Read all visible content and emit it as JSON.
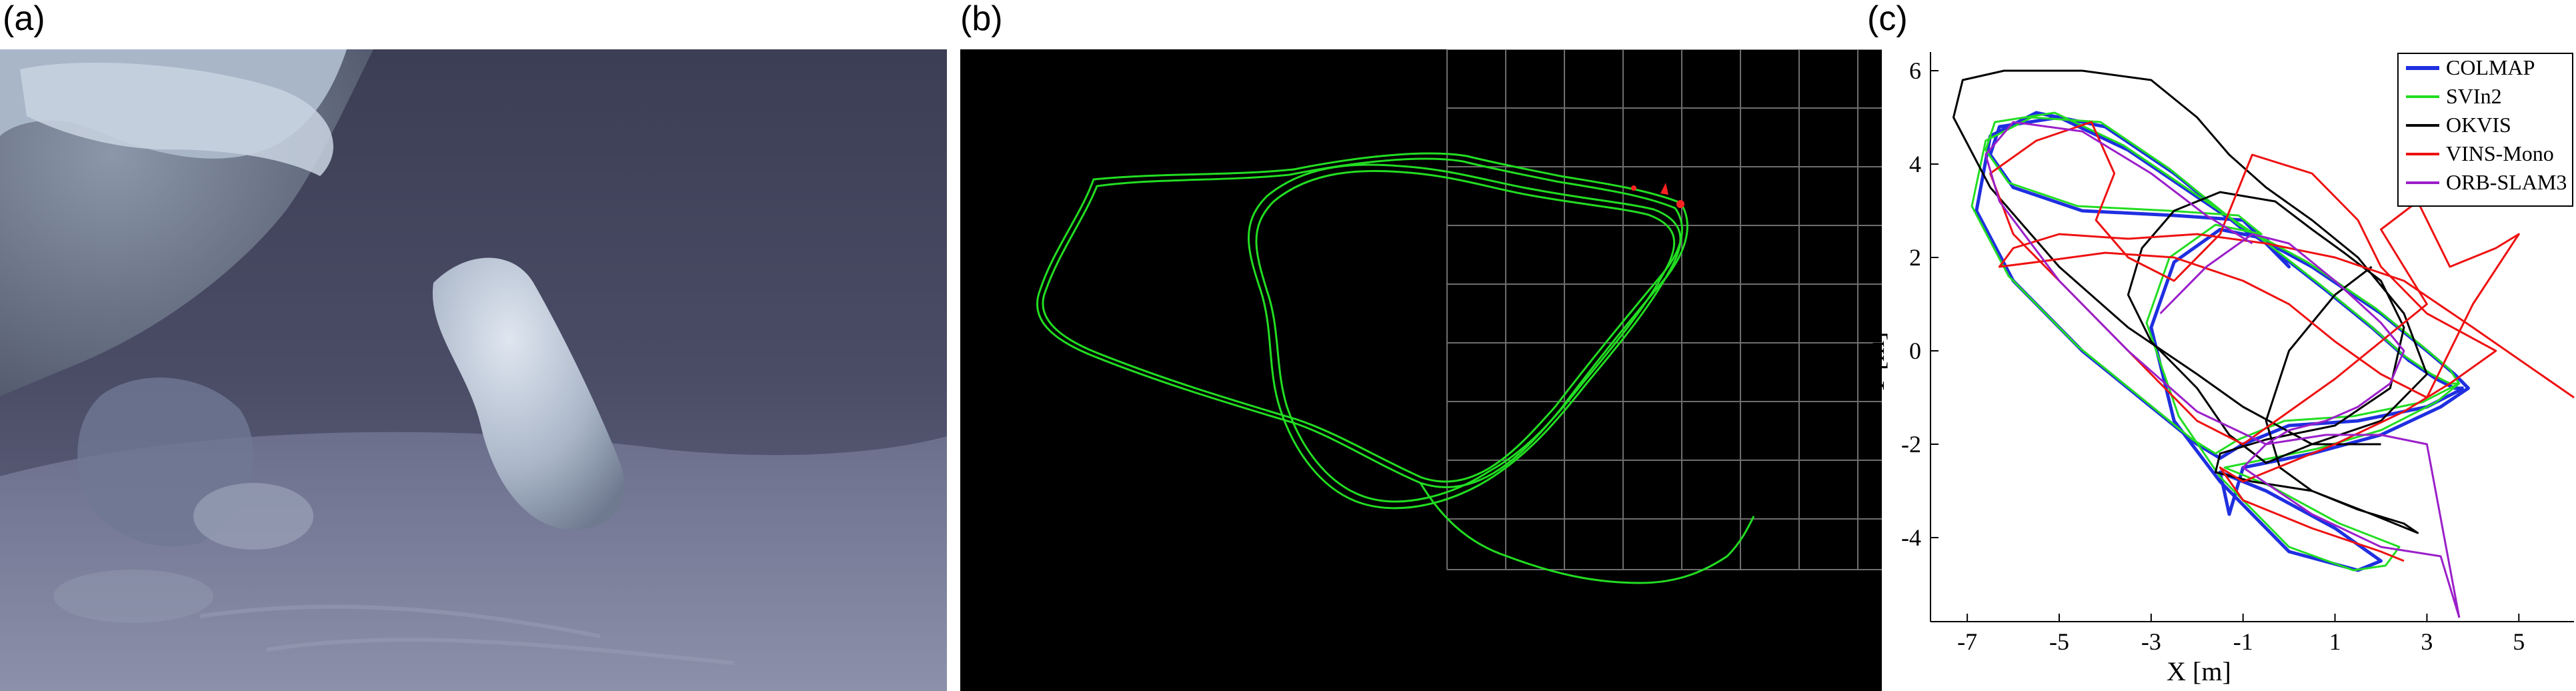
{
  "figure": {
    "panels": [
      {
        "id": "a",
        "label": "(a)"
      },
      {
        "id": "b",
        "label": "(b)"
      },
      {
        "id": "c",
        "label": "(c)"
      }
    ]
  },
  "colors": {
    "photo_bg": "#55586f",
    "trajectory_green": "#22dd22",
    "marker_red": "#ff2222",
    "grid": "#7a7a7a"
  },
  "chart_data": {
    "type": "line",
    "xlabel": "X [m]",
    "ylabel": "Y [m]",
    "xlim": [
      -7.8,
      6.2
    ],
    "ylim": [
      -5.8,
      6.4
    ],
    "xticks": [
      -7,
      -5,
      -3,
      -1,
      1,
      3,
      5
    ],
    "yticks": [
      -4,
      -2,
      0,
      2,
      4,
      6
    ],
    "grid": false,
    "legend_position": "top-right",
    "series": [
      {
        "name": "COLMAP",
        "color": "#1f2fe0",
        "x": [
          3.8,
          3.0,
          1.5,
          0.0,
          -1.0,
          -1.5,
          -2.0,
          -3.0,
          -4.5,
          -6.0,
          -6.8,
          -6.5,
          -5.5,
          -4.0,
          -2.5,
          -1.0,
          0.5,
          2.0,
          3.0,
          3.6,
          3.9,
          3.3,
          2.0,
          0.5,
          -1.0,
          -1.3,
          -1.5,
          -0.5,
          1.0,
          2.0,
          1.5,
          0.0,
          -1.5,
          -2.5,
          -3.0,
          -2.5,
          -1.5,
          -0.5,
          0.0,
          -1.0,
          -2.5,
          -4.5,
          -6.0,
          -6.5,
          -6.3,
          -5.0,
          -3.5,
          -2.0,
          -0.5,
          0.8,
          1.8,
          2.6,
          3.2,
          3.6,
          3.8
        ],
        "y": [
          -0.8,
          -1.2,
          -1.5,
          -1.6,
          -2.0,
          -2.3,
          -2.0,
          -1.2,
          0.0,
          1.5,
          3.0,
          4.6,
          5.1,
          4.8,
          3.8,
          2.6,
          1.8,
          0.8,
          0.0,
          -0.5,
          -0.8,
          -1.2,
          -1.8,
          -2.2,
          -2.5,
          -3.5,
          -2.6,
          -3.0,
          -3.8,
          -4.5,
          -4.7,
          -4.3,
          -2.8,
          -1.5,
          0.5,
          1.9,
          2.6,
          2.4,
          1.8,
          2.8,
          2.9,
          3.0,
          3.5,
          4.2,
          4.8,
          5.0,
          4.3,
          3.3,
          2.3,
          1.3,
          0.5,
          -0.2,
          -0.6,
          -0.8,
          -0.8
        ]
      },
      {
        "name": "SVIn2",
        "color": "#22dd22",
        "x": [
          3.7,
          2.9,
          1.4,
          -0.1,
          -1.1,
          -1.6,
          -2.1,
          -3.1,
          -4.6,
          -6.1,
          -6.9,
          -6.6,
          -5.6,
          -4.1,
          -2.6,
          -1.1,
          0.4,
          1.9,
          2.9,
          3.5,
          3.7,
          3.2,
          2.0,
          0.6,
          -0.9,
          -1.4,
          -0.4,
          1.1,
          2.4,
          2.1,
          1.4,
          0.0,
          -1.5,
          -2.4,
          -3.1,
          -2.6,
          -1.6,
          -0.6,
          -1.1,
          -2.6,
          -4.6,
          -6.1,
          -6.6,
          -6.4,
          -5.1,
          -3.6,
          -2.1,
          -0.6,
          0.7,
          1.7,
          2.5,
          3.1,
          3.5,
          3.7
        ],
        "y": [
          -0.7,
          -1.1,
          -1.4,
          -1.5,
          -1.9,
          -2.2,
          -1.9,
          -1.1,
          0.1,
          1.6,
          3.1,
          4.5,
          5.0,
          4.9,
          3.9,
          2.7,
          1.9,
          0.9,
          0.1,
          -0.4,
          -0.7,
          -1.1,
          -1.7,
          -2.1,
          -2.4,
          -2.5,
          -2.9,
          -3.7,
          -4.2,
          -4.6,
          -4.7,
          -4.2,
          -2.7,
          -1.4,
          0.6,
          2.0,
          2.7,
          2.5,
          2.9,
          3.0,
          3.1,
          3.6,
          4.3,
          4.9,
          5.1,
          4.4,
          3.4,
          2.4,
          1.4,
          0.6,
          -0.1,
          -0.5,
          -0.7,
          -0.7
        ]
      },
      {
        "name": "OKVIS",
        "color": "#000000",
        "x": [
          2.0,
          0.5,
          -1.0,
          -2.0,
          -3.5,
          -5.0,
          -6.5,
          -7.3,
          -7.1,
          -6.2,
          -4.5,
          -3.0,
          -2.0,
          -1.3,
          -0.5,
          0.5,
          1.5,
          2.5,
          3.0,
          2.0,
          0.5,
          -0.5,
          -1.3,
          -2.0,
          -3.0,
          -3.5,
          -3.2,
          -2.5,
          -1.5,
          -0.3,
          0.5,
          1.2,
          2.0,
          2.5,
          2.2,
          1.0,
          -0.5,
          -1.5,
          -1.6,
          -0.8,
          0.5,
          1.8,
          2.8,
          2.5,
          1.5,
          0.5,
          -0.2,
          -0.5,
          0.0,
          1.0,
          1.8
        ],
        "y": [
          -2.0,
          -2.0,
          -1.2,
          -0.5,
          0.5,
          1.8,
          3.5,
          5.0,
          5.8,
          6.0,
          6.0,
          5.8,
          5.0,
          4.2,
          3.5,
          2.8,
          2.0,
          0.8,
          -0.5,
          -1.5,
          -2.0,
          -2.4,
          -1.8,
          -0.8,
          0.2,
          1.2,
          2.2,
          3.0,
          3.4,
          3.2,
          2.6,
          2.1,
          1.5,
          0.5,
          -0.8,
          -1.6,
          -1.9,
          -2.2,
          -2.6,
          -2.8,
          -3.0,
          -3.5,
          -3.9,
          -3.7,
          -3.4,
          -3.0,
          -2.5,
          -1.5,
          0.0,
          1.2,
          1.8
        ]
      },
      {
        "name": "VINS-Mono",
        "color": "#ee1111",
        "x": [
          6.2,
          4.0,
          2.5,
          1.0,
          -0.5,
          -2.0,
          -3.5,
          -5.0,
          -6.0,
          -6.3,
          -5.5,
          -4.0,
          -2.5,
          -1.0,
          0.0,
          1.0,
          2.0,
          3.0,
          4.0,
          5.0,
          4.5,
          3.5,
          2.8,
          2.0,
          3.0,
          2.0,
          1.0,
          0.0,
          -1.0,
          -2.0,
          -3.0,
          -4.0,
          -5.0,
          -6.0,
          -6.5,
          -5.5,
          -4.3,
          -3.8,
          -4.2,
          -3.5,
          -2.5,
          -1.5,
          -0.8,
          0.5,
          1.5,
          2.0,
          3.0,
          4.5,
          3.5,
          2.5,
          1.0,
          0.0,
          -1.0,
          -1.5,
          -1.0,
          0.5,
          2.0,
          2.5
        ],
        "y": [
          -1.0,
          0.5,
          1.5,
          2.0,
          2.3,
          2.5,
          2.4,
          2.5,
          2.2,
          1.8,
          1.9,
          2.1,
          2.0,
          1.5,
          1.0,
          0.2,
          -0.5,
          -1.0,
          1.0,
          2.5,
          2.2,
          1.8,
          3.2,
          2.6,
          1.0,
          0.2,
          -0.6,
          -1.3,
          -2.0,
          -1.5,
          -0.5,
          0.5,
          1.5,
          2.5,
          3.8,
          4.5,
          4.9,
          3.8,
          2.8,
          2.0,
          1.5,
          2.5,
          4.2,
          3.8,
          2.8,
          1.8,
          0.8,
          0.0,
          -0.7,
          -1.3,
          -2.0,
          -2.4,
          -2.8,
          -2.5,
          -3.2,
          -3.8,
          -4.3,
          -4.5
        ]
      },
      {
        "name": "ORB-SLAM3",
        "color": "#9b1fc9",
        "x": [
          -2.8,
          -1.8,
          -0.8,
          0.0,
          1.0,
          2.0,
          2.5,
          2.2,
          1.5,
          0.8,
          0.0,
          -0.5,
          -1.0,
          0.5,
          2.0,
          3.3,
          3.7,
          3.0,
          2.0,
          0.8,
          -0.5,
          -2.0,
          -3.5,
          -5.0,
          -6.3,
          -6.6,
          -6.0,
          -4.5,
          -3.0,
          -1.8,
          -0.8
        ],
        "y": [
          0.8,
          1.8,
          2.5,
          2.3,
          1.5,
          0.6,
          0.0,
          -0.7,
          -1.2,
          -1.5,
          -1.7,
          -2.0,
          -2.5,
          -3.5,
          -4.2,
          -4.4,
          -5.7,
          -2.0,
          -1.8,
          -1.8,
          -2.0,
          -1.3,
          0.0,
          1.5,
          3.2,
          4.2,
          4.9,
          4.7,
          3.8,
          2.9,
          2.3
        ]
      }
    ]
  }
}
